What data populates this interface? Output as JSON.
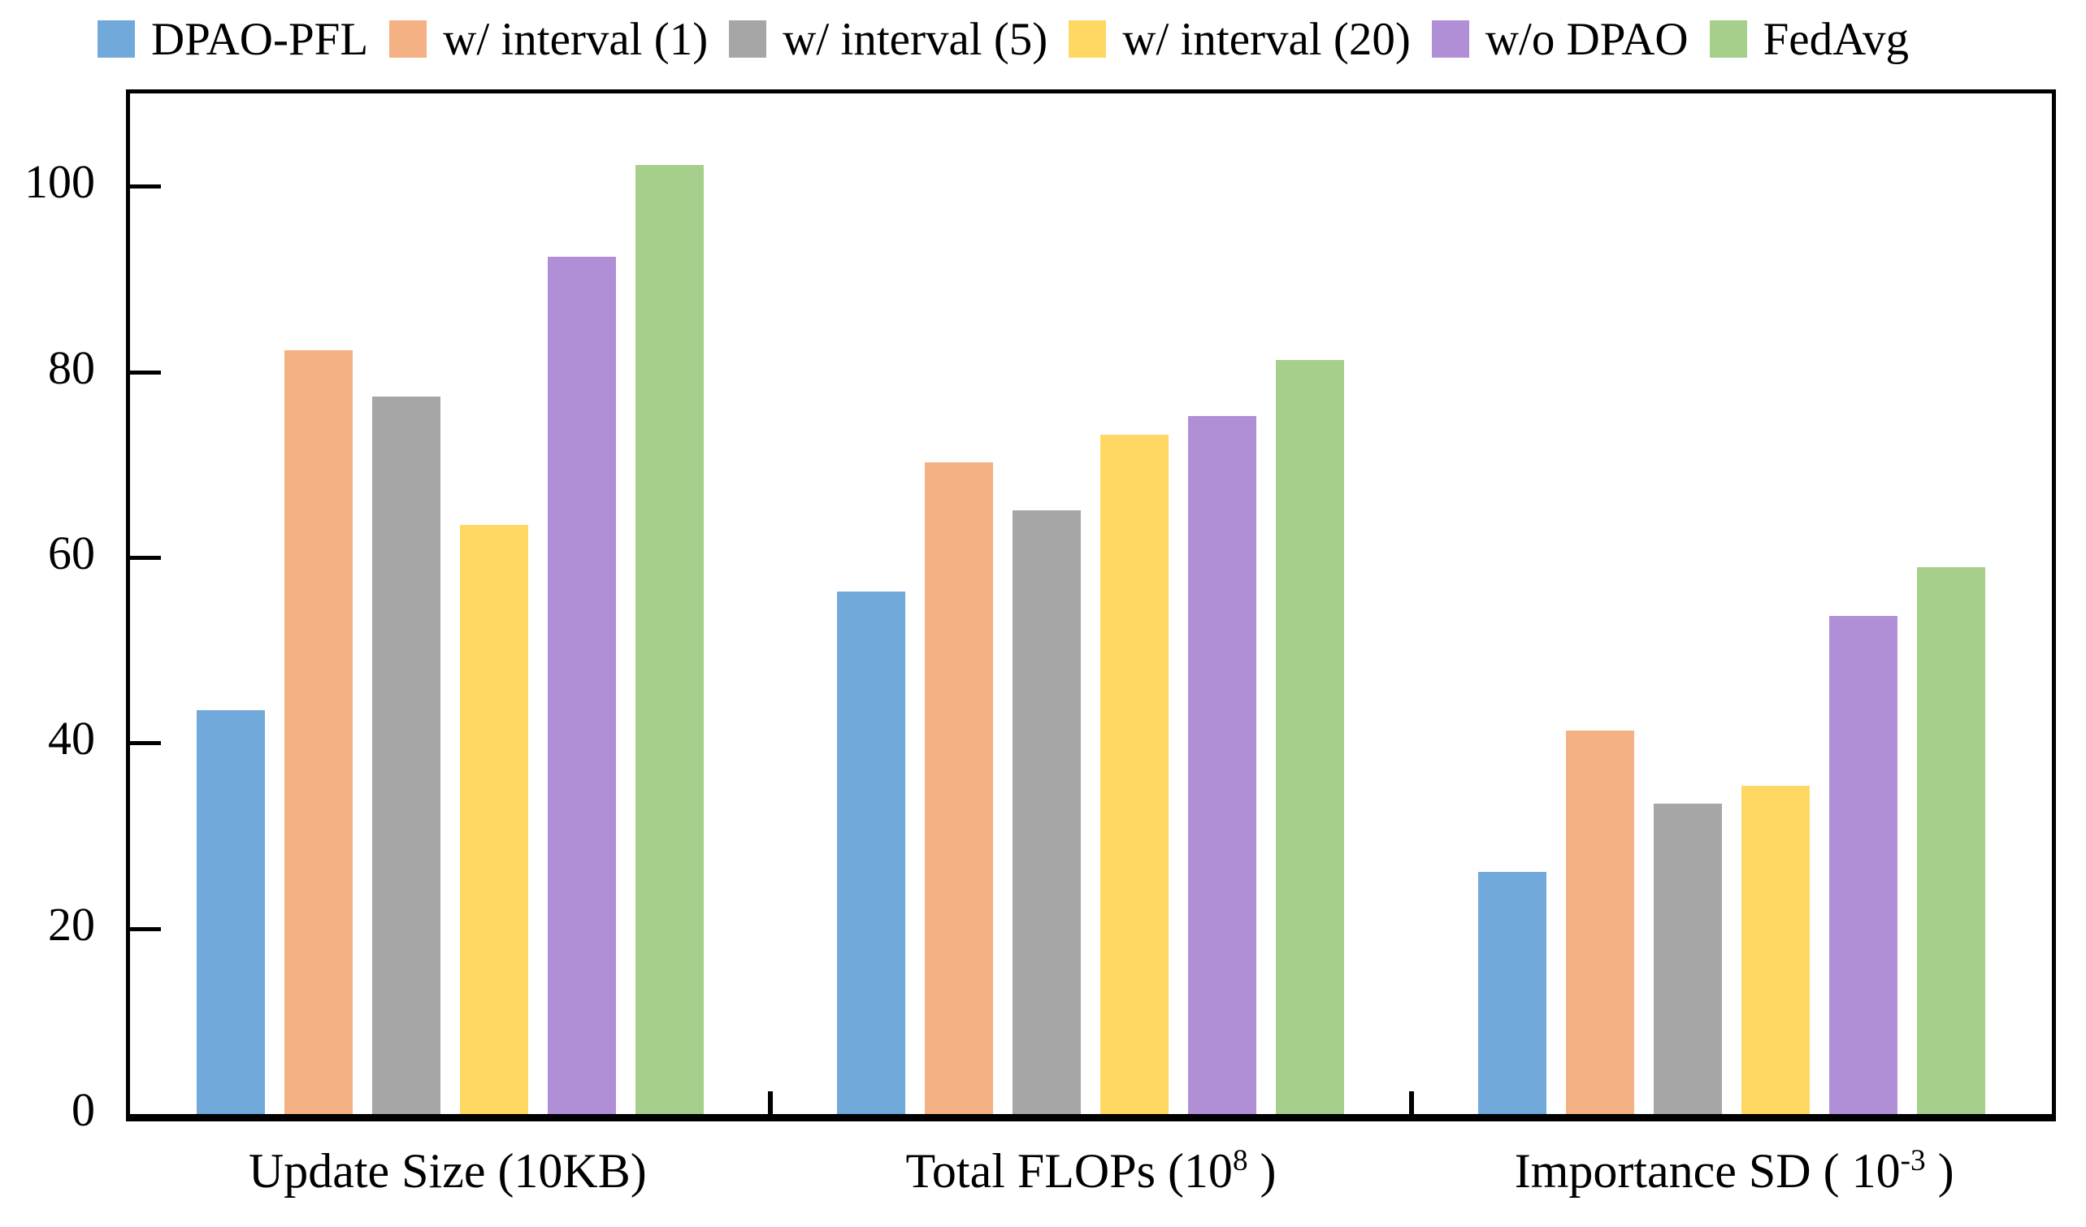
{
  "page": {
    "background": "#ffffff",
    "text_color": "#000000"
  },
  "chart_data": {
    "type": "bar",
    "title": "",
    "xlabel": "",
    "ylabel": "",
    "grid": false,
    "legend_position": "top",
    "ylim": [
      0,
      110
    ],
    "yticks": [
      0,
      20,
      40,
      60,
      80,
      100
    ],
    "categories": [
      "Update Size (10KB)",
      "Total FLOPs (10^8)",
      "Importance SD (10^-3)"
    ],
    "categories_rich": [
      {
        "pre": "Update Size (10KB)",
        "sup": "",
        "post": ""
      },
      {
        "pre": "Total FLOPs (10",
        "sup": "8",
        "post": " )"
      },
      {
        "pre": "Importance SD ( 10",
        "sup": "-3",
        "post": " )"
      }
    ],
    "series": [
      {
        "name": "DPAO-PFL",
        "color": "#71A9DB",
        "values": [
          43.5,
          56.3,
          26.1
        ]
      },
      {
        "name": "w/ interval (1)",
        "color": "#F4B183",
        "values": [
          82.3,
          70.2,
          41.3
        ]
      },
      {
        "name": "w/ interval (5)",
        "color": "#A6A6A6",
        "values": [
          77.3,
          65.1,
          33.5
        ]
      },
      {
        "name": "w/ interval (20)",
        "color": "#FFD763",
        "values": [
          63.5,
          73.2,
          35.4
        ]
      },
      {
        "name": "w/o DPAO",
        "color": "#B18FD7",
        "values": [
          92.4,
          75.2,
          53.7
        ]
      },
      {
        "name": "FedAvg",
        "color": "#A7CF8C",
        "values": [
          102.3,
          81.3,
          58.9
        ]
      }
    ]
  }
}
